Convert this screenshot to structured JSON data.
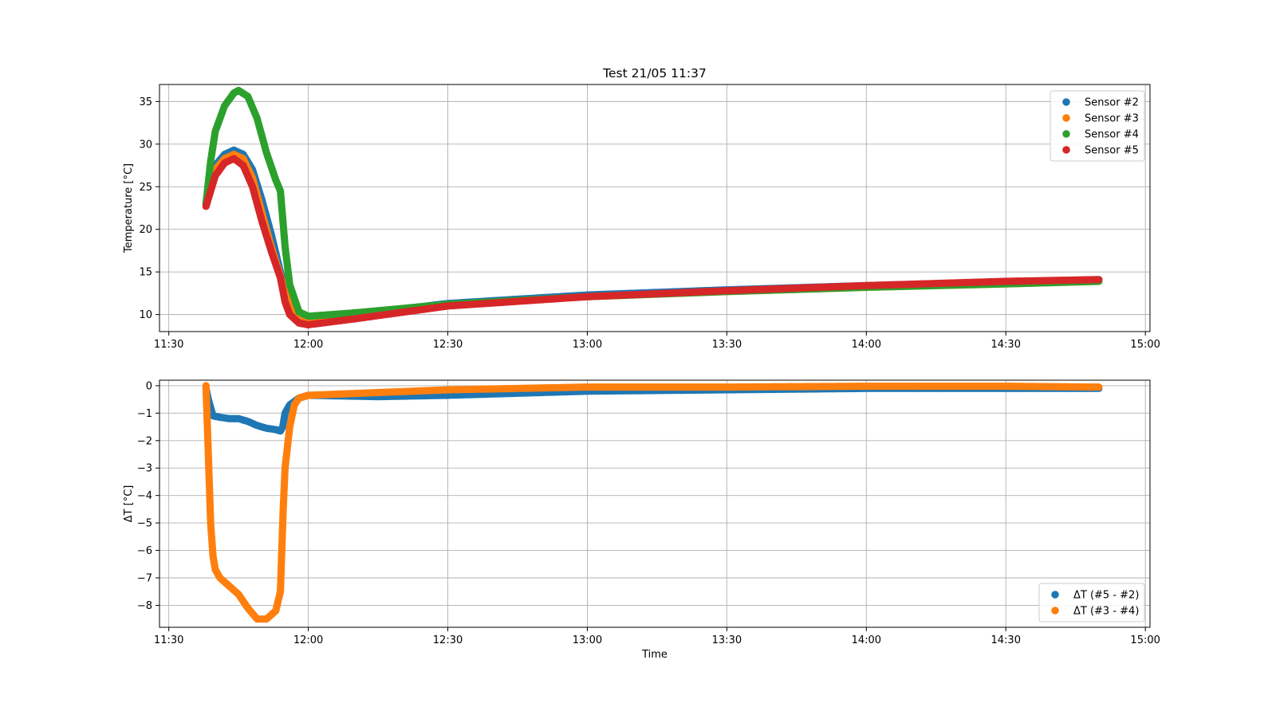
{
  "chart_data": [
    {
      "type": "scatter",
      "title": "Test 21/05 11:37",
      "xlabel": "",
      "ylabel": "Temperature [°C]",
      "x_ticks": [
        "11:30",
        "12:00",
        "12:30",
        "13:00",
        "13:30",
        "14:00",
        "14:30",
        "15:00"
      ],
      "xlim": [
        "11:28",
        "15:01"
      ],
      "ylim": [
        8,
        37
      ],
      "y_ticks": [
        10,
        15,
        20,
        25,
        30,
        35
      ],
      "grid": true,
      "legend_position": "top-right",
      "series": [
        {
          "name": "Sensor #2",
          "color": "#1f77b4",
          "points": [
            [
              "11:38",
              23.0
            ],
            [
              "11:39",
              25.5
            ],
            [
              "11:40",
              27.5
            ],
            [
              "11:42",
              28.8
            ],
            [
              "11:44",
              29.3
            ],
            [
              "11:46",
              28.8
            ],
            [
              "11:48",
              27.0
            ],
            [
              "11:50",
              23.5
            ],
            [
              "11:52",
              19.5
            ],
            [
              "11:54",
              15.0
            ],
            [
              "11:56",
              11.0
            ],
            [
              "11:58",
              9.8
            ],
            [
              "12:00",
              9.6
            ],
            [
              "12:10",
              10.0
            ],
            [
              "12:30",
              11.3
            ],
            [
              "13:00",
              12.3
            ],
            [
              "13:30",
              12.9
            ],
            [
              "14:00",
              13.4
            ],
            [
              "14:30",
              13.8
            ],
            [
              "14:50",
              14.1
            ]
          ]
        },
        {
          "name": "Sensor #3",
          "color": "#ff7f0e",
          "points": [
            [
              "11:38",
              22.8
            ],
            [
              "11:39",
              25.0
            ],
            [
              "11:40",
              27.0
            ],
            [
              "11:42",
              28.3
            ],
            [
              "11:44",
              28.8
            ],
            [
              "11:46",
              28.3
            ],
            [
              "11:48",
              26.0
            ],
            [
              "11:50",
              22.0
            ],
            [
              "11:52",
              18.0
            ],
            [
              "11:54",
              14.5
            ],
            [
              "11:56",
              10.8
            ],
            [
              "11:58",
              9.6
            ],
            [
              "12:00",
              9.5
            ],
            [
              "12:10",
              9.9
            ],
            [
              "12:30",
              11.1
            ],
            [
              "13:00",
              12.1
            ],
            [
              "13:30",
              12.7
            ],
            [
              "14:00",
              13.2
            ],
            [
              "14:30",
              13.6
            ],
            [
              "14:50",
              13.9
            ]
          ]
        },
        {
          "name": "Sensor #4",
          "color": "#2ca02c",
          "points": [
            [
              "11:38",
              23.0
            ],
            [
              "11:39",
              28.0
            ],
            [
              "11:40",
              31.5
            ],
            [
              "11:42",
              34.5
            ],
            [
              "11:44",
              36.0
            ],
            [
              "11:45",
              36.3
            ],
            [
              "11:47",
              35.6
            ],
            [
              "11:49",
              33.0
            ],
            [
              "11:51",
              29.0
            ],
            [
              "11:53",
              25.8
            ],
            [
              "11:54",
              24.5
            ],
            [
              "11:55",
              18.0
            ],
            [
              "11:56",
              13.5
            ],
            [
              "11:58",
              10.3
            ],
            [
              "12:00",
              9.8
            ],
            [
              "12:10",
              10.2
            ],
            [
              "12:30",
              11.2
            ],
            [
              "13:00",
              12.1
            ],
            [
              "13:30",
              12.7
            ],
            [
              "14:00",
              13.2
            ],
            [
              "14:30",
              13.6
            ],
            [
              "14:50",
              13.9
            ]
          ]
        },
        {
          "name": "Sensor #5",
          "color": "#d62728",
          "points": [
            [
              "11:38",
              22.7
            ],
            [
              "11:39",
              24.5
            ],
            [
              "11:40",
              26.3
            ],
            [
              "11:42",
              27.8
            ],
            [
              "11:44",
              28.3
            ],
            [
              "11:46",
              27.5
            ],
            [
              "11:48",
              25.0
            ],
            [
              "11:50",
              21.0
            ],
            [
              "11:52",
              17.5
            ],
            [
              "11:54",
              14.3
            ],
            [
              "11:55",
              11.5
            ],
            [
              "11:56",
              10.0
            ],
            [
              "11:58",
              9.0
            ],
            [
              "12:00",
              8.8
            ],
            [
              "12:10",
              9.5
            ],
            [
              "12:30",
              11.0
            ],
            [
              "13:00",
              12.1
            ],
            [
              "13:30",
              12.8
            ],
            [
              "14:00",
              13.4
            ],
            [
              "14:30",
              13.9
            ],
            [
              "14:50",
              14.1
            ]
          ]
        }
      ]
    },
    {
      "type": "scatter",
      "title": "",
      "xlabel": "Time",
      "ylabel": "ΔT [°C]",
      "x_ticks": [
        "11:30",
        "12:00",
        "12:30",
        "13:00",
        "13:30",
        "14:00",
        "14:30",
        "15:00"
      ],
      "xlim": [
        "11:28",
        "15:01"
      ],
      "ylim": [
        -8.8,
        0.2
      ],
      "y_ticks": [
        0,
        -1,
        -2,
        -3,
        -4,
        -5,
        -6,
        -7,
        -8
      ],
      "grid": true,
      "legend_position": "bottom-right",
      "series": [
        {
          "name": "ΔT (#5 - #2)",
          "color": "#1f77b4",
          "points": [
            [
              "11:38",
              -0.1
            ],
            [
              "11:38.5",
              -0.5
            ],
            [
              "11:39",
              -0.8
            ],
            [
              "11:39.5",
              -1.1
            ],
            [
              "11:41",
              -1.15
            ],
            [
              "11:43",
              -1.2
            ],
            [
              "11:45",
              -1.2
            ],
            [
              "11:47",
              -1.3
            ],
            [
              "11:49",
              -1.45
            ],
            [
              "11:51",
              -1.55
            ],
            [
              "11:53",
              -1.6
            ],
            [
              "11:54",
              -1.65
            ],
            [
              "11:54.5",
              -1.5
            ],
            [
              "11:55",
              -1.0
            ],
            [
              "11:56",
              -0.7
            ],
            [
              "11:58",
              -0.45
            ],
            [
              "12:00",
              -0.35
            ],
            [
              "12:15",
              -0.4
            ],
            [
              "12:30",
              -0.35
            ],
            [
              "13:00",
              -0.2
            ],
            [
              "13:30",
              -0.15
            ],
            [
              "14:00",
              -0.1
            ],
            [
              "14:30",
              -0.1
            ],
            [
              "14:50",
              -0.1
            ]
          ]
        },
        {
          "name": "ΔT (#3 - #4)",
          "color": "#ff7f0e",
          "points": [
            [
              "11:38",
              0.0
            ],
            [
              "11:38.3",
              -1.5
            ],
            [
              "11:38.6",
              -3.0
            ],
            [
              "11:39",
              -5.0
            ],
            [
              "11:39.5",
              -6.2
            ],
            [
              "11:40",
              -6.7
            ],
            [
              "11:41",
              -7.0
            ],
            [
              "11:43",
              -7.3
            ],
            [
              "11:45",
              -7.6
            ],
            [
              "11:47",
              -8.1
            ],
            [
              "11:49",
              -8.5
            ],
            [
              "11:51",
              -8.5
            ],
            [
              "11:53",
              -8.2
            ],
            [
              "11:54",
              -7.5
            ],
            [
              "11:54.3",
              -6.0
            ],
            [
              "11:54.6",
              -4.5
            ],
            [
              "11:55",
              -3.0
            ],
            [
              "11:56",
              -1.5
            ],
            [
              "11:57",
              -0.7
            ],
            [
              "11:58",
              -0.45
            ],
            [
              "12:00",
              -0.35
            ],
            [
              "12:15",
              -0.25
            ],
            [
              "12:30",
              -0.15
            ],
            [
              "13:00",
              -0.05
            ],
            [
              "13:30",
              -0.05
            ],
            [
              "14:00",
              -0.02
            ],
            [
              "14:30",
              -0.02
            ],
            [
              "14:50",
              -0.05
            ]
          ]
        }
      ]
    }
  ]
}
